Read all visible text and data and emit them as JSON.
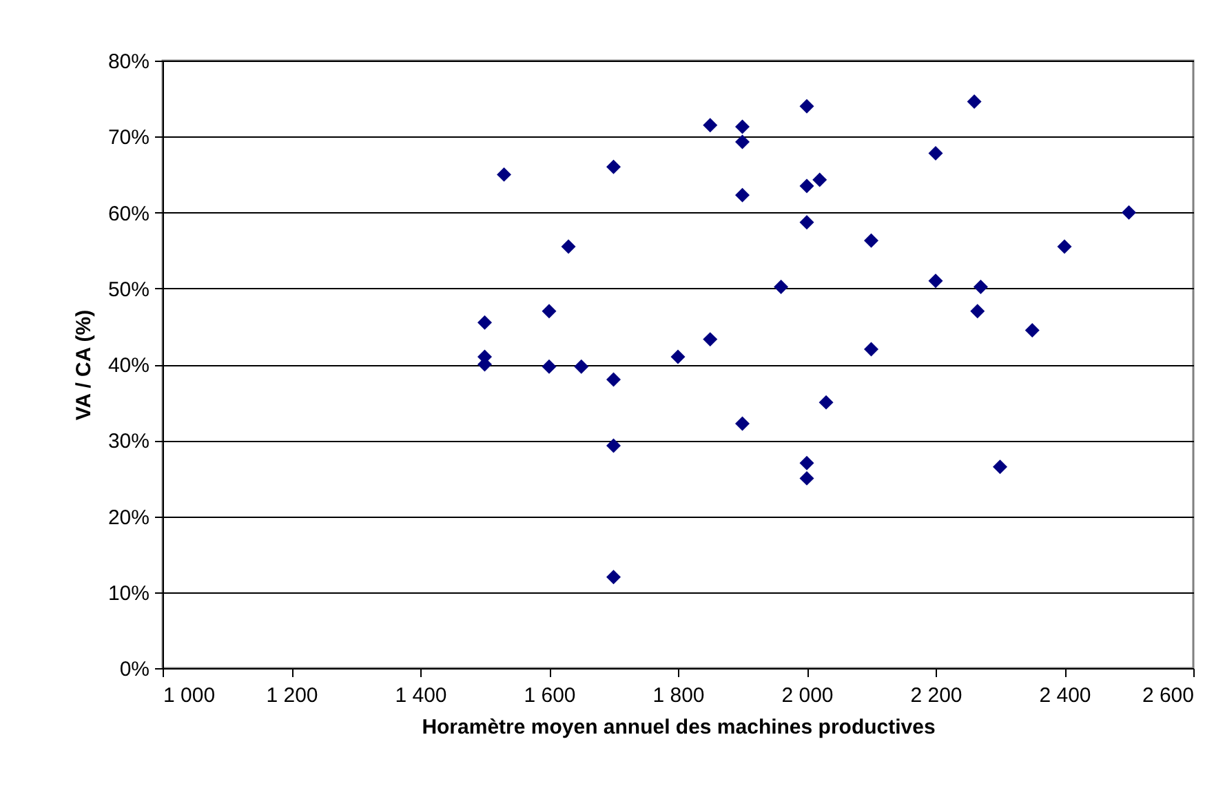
{
  "chart_data": {
    "type": "scatter",
    "xlabel": "Horamètre moyen annuel des machines productives",
    "ylabel": "VA / CA (%)",
    "x": [
      1500,
      1500,
      1500,
      1530,
      1600,
      1600,
      1630,
      1650,
      1700,
      1700,
      1700,
      1700,
      1800,
      1850,
      1850,
      1900,
      1900,
      1900,
      1900,
      1960,
      2000,
      2000,
      2000,
      2000,
      2000,
      2020,
      2030,
      2100,
      2100,
      2200,
      2200,
      2260,
      2265,
      2270,
      2300,
      2350,
      2400,
      2500
    ],
    "series": [
      {
        "color": "#000080",
        "values": [
          45.5,
          41,
          40,
          65,
          47,
          39.7,
          55.5,
          39.7,
          66,
          38,
          29.3,
          12,
          41,
          71.5,
          43.3,
          71.3,
          69.3,
          62.3,
          32.2,
          50.2,
          74,
          63.5,
          58.7,
          27,
          25,
          64.3,
          35,
          56.3,
          42,
          67.8,
          51,
          74.6,
          47,
          50.2,
          26.5,
          44.5,
          55.5,
          60
        ]
      }
    ],
    "marker": "diamond",
    "grid": "y",
    "xlim": [
      1000,
      2600
    ],
    "xticks": [
      {
        "value": 1000,
        "label": "1 000"
      },
      {
        "value": 1200,
        "label": "1 200"
      },
      {
        "value": 1400,
        "label": "1 400"
      },
      {
        "value": 1600,
        "label": "1 600"
      },
      {
        "value": 1800,
        "label": "1 800"
      },
      {
        "value": 2000,
        "label": "2 000"
      },
      {
        "value": 2200,
        "label": "2 200"
      },
      {
        "value": 2400,
        "label": "2 400"
      },
      {
        "value": 2600,
        "label": "2 600"
      }
    ],
    "ylim": [
      0,
      80
    ],
    "yticks": [
      {
        "value": 0,
        "label": "0%"
      },
      {
        "value": 10,
        "label": "10%"
      },
      {
        "value": 20,
        "label": "20%"
      },
      {
        "value": 30,
        "label": "30%"
      },
      {
        "value": 40,
        "label": "40%"
      },
      {
        "value": 50,
        "label": "50%"
      },
      {
        "value": 60,
        "label": "60%"
      },
      {
        "value": 70,
        "label": "70%"
      },
      {
        "value": 80,
        "label": "80%"
      }
    ]
  }
}
